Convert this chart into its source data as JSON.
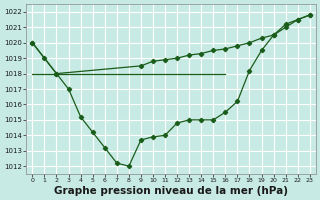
{
  "bg_color": "#c8eae4",
  "grid_color": "#ffffff",
  "line_color": "#1a5c1a",
  "xlabel": "Graphe pression niveau de la mer (hPa)",
  "xlabel_fontsize": 7.5,
  "xlim": [
    -0.5,
    23.5
  ],
  "ylim": [
    1011.5,
    1022.5
  ],
  "yticks": [
    1012,
    1013,
    1014,
    1015,
    1016,
    1017,
    1018,
    1019,
    1020,
    1021,
    1022
  ],
  "xticks": [
    0,
    1,
    2,
    3,
    4,
    5,
    6,
    7,
    8,
    9,
    10,
    11,
    12,
    13,
    14,
    15,
    16,
    17,
    18,
    19,
    20,
    21,
    22,
    23
  ],
  "series1_x": [
    0,
    1,
    2,
    3,
    4,
    5,
    6,
    7,
    8,
    9,
    10,
    11,
    12,
    13,
    14,
    15,
    16,
    17,
    18,
    19,
    20,
    21,
    22,
    23
  ],
  "series1_y": [
    1020.0,
    1019.0,
    1018.0,
    1017.0,
    1015.2,
    1014.2,
    1013.2,
    1012.2,
    1012.0,
    1013.7,
    1013.9,
    1014.0,
    1014.8,
    1015.0,
    1015.0,
    1015.0,
    1015.5,
    1016.2,
    1018.2,
    1019.5,
    1020.5,
    1021.2,
    1021.5,
    1021.8
  ],
  "series2_x": [
    0,
    2,
    16
  ],
  "series2_y": [
    1018.0,
    1018.0,
    1018.0
  ],
  "series3_x": [
    0,
    2,
    9,
    10,
    11,
    12,
    13,
    14,
    15,
    16,
    17,
    18,
    19,
    20,
    21,
    22,
    23
  ],
  "series3_y": [
    1020.0,
    1018.0,
    1018.5,
    1018.8,
    1018.9,
    1019.0,
    1019.2,
    1019.3,
    1019.5,
    1019.6,
    1019.8,
    1020.0,
    1020.3,
    1020.5,
    1021.0,
    1021.5,
    1021.8
  ]
}
